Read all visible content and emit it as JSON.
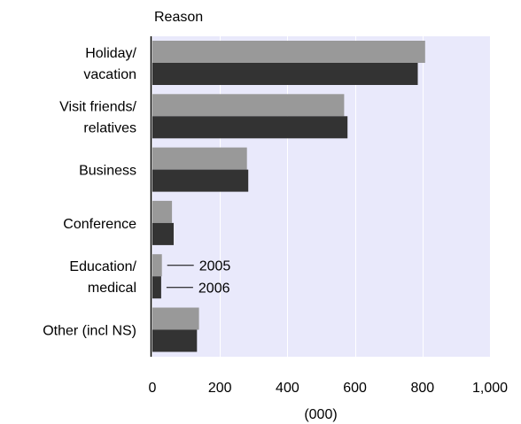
{
  "chart_data": {
    "type": "bar",
    "orientation": "horizontal",
    "title": "Reason",
    "xlabel": "(000)",
    "ylabel": "",
    "xlim": [
      0,
      1000
    ],
    "xticks": [
      0,
      200,
      400,
      600,
      800,
      1000
    ],
    "xtick_labels": [
      "0",
      "200",
      "400",
      "600",
      "800",
      "1,000"
    ],
    "categories": [
      [
        "Holiday/",
        "vacation"
      ],
      [
        "Visit friends/",
        "relatives"
      ],
      [
        "Business"
      ],
      [
        "Conference"
      ],
      [
        "Education/",
        "medical"
      ],
      [
        "Other (incl NS)"
      ]
    ],
    "series": [
      {
        "name": "2005",
        "color": "#999999",
        "values": [
          808,
          568,
          280,
          58,
          28,
          138
        ]
      },
      {
        "name": "2006",
        "color": "#333333",
        "values": [
          786,
          578,
          284,
          63,
          26,
          132
        ]
      }
    ],
    "plot_background": "#e9e9fb",
    "grid": "vertical",
    "legend": "inline labels beside Education/medical bars"
  }
}
